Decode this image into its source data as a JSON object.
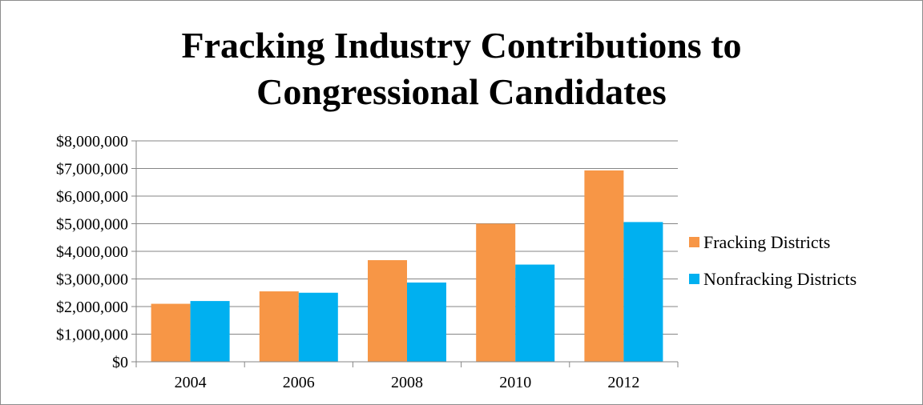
{
  "chart_data": {
    "type": "bar",
    "title_lines": [
      "Fracking Industry Contributions to",
      "Congressional Candidates"
    ],
    "categories": [
      "2004",
      "2006",
      "2008",
      "2010",
      "2012"
    ],
    "series": [
      {
        "name": "Fracking Districts",
        "color": "#F79646",
        "values": [
          2100000,
          2550000,
          3680000,
          5000000,
          6930000
        ]
      },
      {
        "name": "Nonfracking Districts",
        "color": "#00B0F0",
        "values": [
          2200000,
          2500000,
          2870000,
          3520000,
          5060000
        ]
      }
    ],
    "ylim": [
      0,
      8000000
    ],
    "yticks": [
      0,
      1000000,
      2000000,
      3000000,
      4000000,
      5000000,
      6000000,
      7000000,
      8000000
    ],
    "ytick_labels": [
      "$0",
      "$1,000,000",
      "$2,000,000",
      "$3,000,000",
      "$4,000,000",
      "$5,000,000",
      "$6,000,000",
      "$7,000,000",
      "$8,000,000"
    ],
    "xlabel": "",
    "ylabel": "",
    "grid": true,
    "legend_position": "right"
  }
}
